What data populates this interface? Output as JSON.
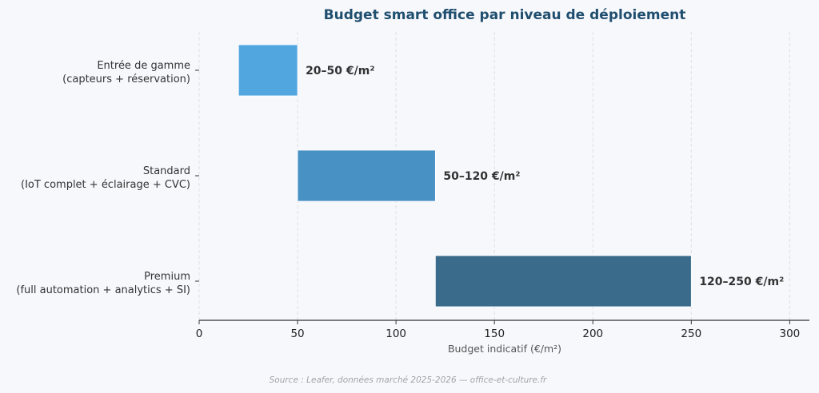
{
  "chart_data": {
    "type": "bar",
    "orientation": "horizontal",
    "range_bars": true,
    "title": "Budget smart office par niveau de déploiement",
    "xlabel": "Budget indicatif (€/m²)",
    "ylabel": "",
    "xlim": [
      0,
      310
    ],
    "xticks": [
      0,
      50,
      100,
      150,
      200,
      250,
      300
    ],
    "grid": "x-dashed",
    "categories": [
      {
        "line1": "Entrée de gamme",
        "line2": "(capteurs + réservation)"
      },
      {
        "line1": "Standard",
        "line2": "(IoT complet + éclairage + CVC)"
      },
      {
        "line1": "Premium",
        "line2": "(full automation + analytics + SI)"
      }
    ],
    "series": [
      {
        "name": "Budget",
        "start": [
          20,
          50,
          120
        ],
        "end": [
          50,
          120,
          250
        ]
      }
    ],
    "data_labels": [
      "20–50 €/m²",
      "50–120 €/m²",
      "120–250 €/m²"
    ],
    "colors": [
      "#52a6df",
      "#4891c4",
      "#3a6b8a"
    ],
    "source": "Source : Leafer, données marché 2025-2026 — office-et-culture.fr"
  }
}
